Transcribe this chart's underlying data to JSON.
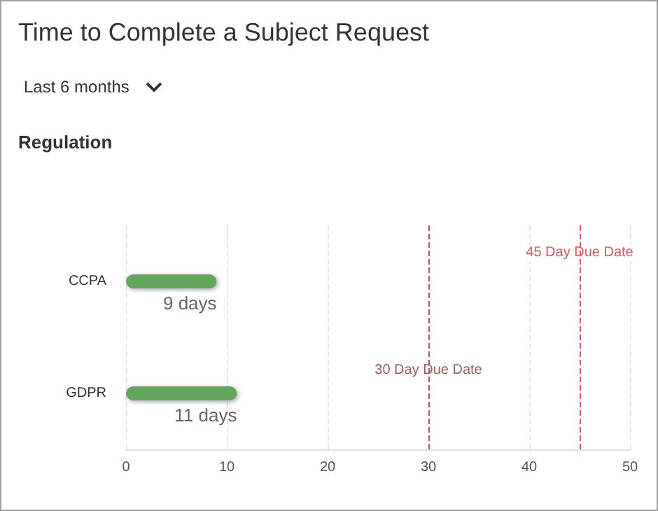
{
  "chart_data": {
    "type": "bar",
    "orientation": "horizontal",
    "title": "Time to Complete a Subject Request",
    "subtitle": "Last 6 months",
    "ylabel": "Regulation",
    "categories": [
      "CCPA",
      "GDPR"
    ],
    "values": [
      9,
      11
    ],
    "value_labels": [
      "9 days",
      "11 days"
    ],
    "color": "#64a55c",
    "xlim": [
      0,
      50
    ],
    "xticks": [
      0,
      10,
      20,
      30,
      40,
      50
    ],
    "grid": "x",
    "ref_lines": [
      {
        "axis": "x",
        "value": 30,
        "label": "30 Day Due Date",
        "color": "#a35a5a",
        "line_style": "dashed"
      },
      {
        "axis": "x",
        "value": 45,
        "label": "45 Day Due Date",
        "color": "#e8535e",
        "line_style": "dashed"
      }
    ]
  }
}
